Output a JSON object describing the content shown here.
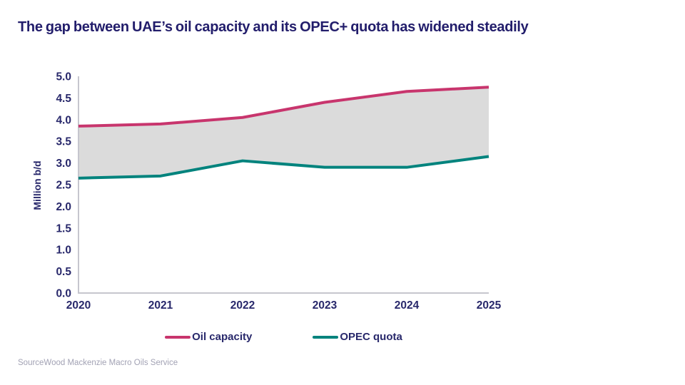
{
  "title": "The gap between UAE’s oil capacity and its OPEC+ quota has widened steadily",
  "source": "SourceWood Mackenzie Macro Oils Service",
  "colors": {
    "title_navy": "#221d6b",
    "axis_label_navy": "#28286b",
    "axis_line_gray": "#c6c6ce",
    "band_gray": "#dbdbdb",
    "oil_capacity_pink": "#c8356d",
    "opec_quota_teal": "#00837d",
    "source_gray": "#a2a2b4"
  },
  "chart_data": {
    "type": "line",
    "x": [
      "2020",
      "2021",
      "2022",
      "2023",
      "2024",
      "2025"
    ],
    "series": [
      {
        "name": "Oil capacity",
        "color": "#c8356d",
        "values": [
          3.85,
          3.9,
          4.05,
          4.4,
          4.65,
          4.75
        ]
      },
      {
        "name": "OPEC quota",
        "color": "#00837d",
        "values": [
          2.65,
          2.7,
          3.05,
          2.9,
          2.9,
          3.15
        ]
      }
    ],
    "band_between_series": true,
    "band_fill": "#dbdbdb",
    "title": "The gap between UAE’s oil capacity and its OPEC+ quota has widened steadily",
    "xlabel": "",
    "ylabel": "Million b/d",
    "ylim": [
      0,
      5
    ],
    "ytick_step": 0.5,
    "ytick_labels": [
      "0.0",
      "0.5",
      "1.0",
      "1.5",
      "2.0",
      "2.5",
      "3.0",
      "3.5",
      "4.0",
      "4.5",
      "5.0"
    ],
    "grid": false,
    "legend_position": "bottom"
  }
}
